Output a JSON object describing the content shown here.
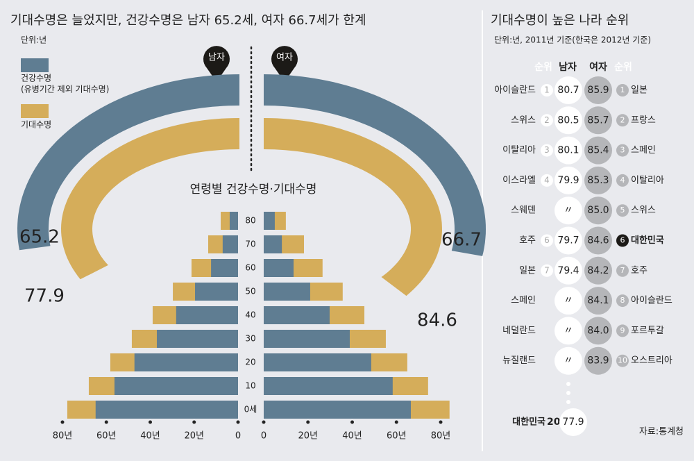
{
  "chart_data": [
    {
      "type": "arc",
      "title": "기대수명은 늘었지만, 건강수명은 남자 65.2세, 여자 66.7세가 한계",
      "subtitle": "단위:년",
      "categories": [
        "남자",
        "여자"
      ],
      "series": [
        {
          "name": "건강수명",
          "note": "(유병기간 제외 기대수명)",
          "color": "#5f7d92",
          "values": [
            65.2,
            66.7
          ]
        },
        {
          "name": "기대수명",
          "color": "#d5ad5a",
          "values": [
            77.9,
            84.6
          ]
        }
      ],
      "ylim": [
        0,
        120
      ]
    },
    {
      "type": "pyramid",
      "title": "연령별 건강수명·기대수명",
      "categories": [
        "0세",
        "10",
        "20",
        "30",
        "40",
        "50",
        "60",
        "70",
        "80"
      ],
      "xlim": [
        0,
        80
      ],
      "male": {
        "health": [
          64.9,
          56.3,
          47.2,
          37.0,
          28.2,
          19.6,
          12.3,
          7.0,
          3.8
        ],
        "life": [
          77.8,
          68.0,
          58.2,
          48.4,
          38.9,
          29.7,
          21.2,
          13.6,
          7.9
        ],
        "xticks": [
          {
            "value": 80,
            "label": "80년"
          },
          {
            "value": 60,
            "label": "60년"
          },
          {
            "value": 40,
            "label": "40년"
          },
          {
            "value": 20,
            "label": "20년"
          },
          0
        ]
      },
      "female": {
        "health": [
          66.5,
          58.3,
          48.6,
          38.9,
          29.8,
          21.0,
          13.5,
          8.2,
          5.0
        ],
        "life": [
          84.0,
          74.3,
          64.9,
          55.2,
          45.5,
          35.7,
          26.6,
          18.2,
          10.0
        ],
        "xticks": [
          0,
          {
            "value": 20,
            "label": "20년"
          },
          {
            "value": 40,
            "label": "40년"
          },
          {
            "value": 60,
            "label": "60년"
          },
          {
            "value": 80,
            "label": "80년"
          }
        ]
      }
    }
  ],
  "ranking": {
    "title": "기대수명이 높은 나라 순위",
    "subtitle": "단위:년, 2011년 기준(한국은 2012년 기준)",
    "headers": [
      "순위",
      "남자",
      "여자",
      "순위"
    ],
    "rows": [
      {
        "male_country": "아이슬란드",
        "male_rank": "1",
        "male": "80.7",
        "female": "85.9",
        "female_rank": "1",
        "female_country": "일본"
      },
      {
        "male_country": "스위스",
        "male_rank": "2",
        "male": "80.5",
        "female": "85.7",
        "female_rank": "2",
        "female_country": "프랑스"
      },
      {
        "male_country": "이탈리아",
        "male_rank": "3",
        "male": "80.1",
        "female": "85.4",
        "female_rank": "3",
        "female_country": "스페인"
      },
      {
        "male_country": "이스라엘",
        "male_rank": "4",
        "male": "79.9",
        "female": "85.3",
        "female_rank": "4",
        "female_country": "이탈리아"
      },
      {
        "male_country": "스웨덴",
        "male_rank": "",
        "male": "〃",
        "female": "85.0",
        "female_rank": "5",
        "female_country": "스위스"
      },
      {
        "male_country": "호주",
        "male_rank": "6",
        "male": "79.7",
        "female": "84.6",
        "female_rank": "6",
        "female_country": "대한민국"
      },
      {
        "male_country": "일본",
        "male_rank": "7",
        "male": "79.4",
        "female": "84.2",
        "female_rank": "7",
        "female_country": "호주"
      },
      {
        "male_country": "스페인",
        "male_rank": "",
        "male": "〃",
        "female": "84.1",
        "female_rank": "8",
        "female_country": "아이슬란드"
      },
      {
        "male_country": "네덜란드",
        "male_rank": "",
        "male": "〃",
        "female": "84.0",
        "female_rank": "9",
        "female_country": "포르투갈"
      },
      {
        "male_country": "뉴질랜드",
        "male_rank": "",
        "male": "〃",
        "female": "83.9",
        "female_rank": "10",
        "female_country": "오스트리아"
      }
    ],
    "korea": {
      "country": "대한민국",
      "rank": "20",
      "value": "77.9"
    },
    "source": "자료:통계청"
  }
}
